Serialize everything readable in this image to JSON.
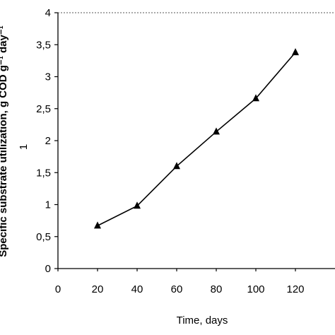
{
  "chart_data": {
    "type": "line",
    "title": "",
    "xlabel": "Time, days",
    "ylabel": "Specific substrate utilization, g COD g⁻¹ day⁻¹",
    "ylabel_subscript": "1",
    "x": [
      20,
      40,
      60,
      80,
      100,
      120
    ],
    "series": [
      {
        "values": [
          0.67,
          0.98,
          1.6,
          2.14,
          2.66,
          3.38
        ]
      }
    ],
    "marker": "triangle",
    "line_color": "#000000",
    "xlim": [
      0,
      140
    ],
    "ylim": [
      0,
      4
    ],
    "xticks": [
      "0",
      "20",
      "40",
      "60",
      "80",
      "100",
      "120"
    ],
    "yticks": [
      "0",
      "0,5",
      "1",
      "1,5",
      "2",
      "2,5",
      "3",
      "3,5",
      "4"
    ],
    "grid": false,
    "legend": "none"
  }
}
